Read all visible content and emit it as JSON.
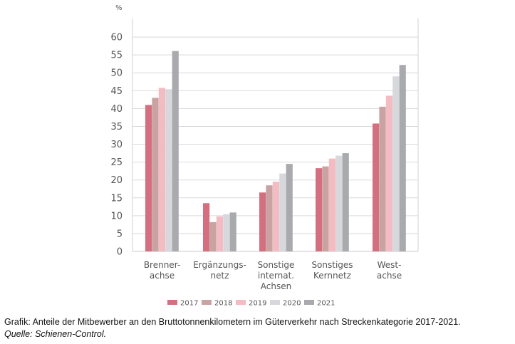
{
  "chart_data": {
    "type": "bar",
    "unit": "%",
    "categories": [
      [
        "Brenner-",
        "achse"
      ],
      [
        "Ergänzungs-",
        "netz"
      ],
      [
        "Sonstige",
        "internat.",
        "Achsen"
      ],
      [
        "Sonstiges",
        "Kernnetz"
      ],
      [
        "West-",
        "achse"
      ]
    ],
    "series": [
      {
        "name": "2017",
        "color": "#d46f7f",
        "values": [
          41,
          13.5,
          16.5,
          23.3,
          35.8
        ]
      },
      {
        "name": "2018",
        "color": "#c9a3a2",
        "values": [
          43,
          8.2,
          18.5,
          23.8,
          40.5
        ]
      },
      {
        "name": "2019",
        "color": "#f2bcc2",
        "values": [
          45.8,
          9.8,
          19.5,
          26,
          43.6
        ]
      },
      {
        "name": "2020",
        "color": "#d6d8db",
        "values": [
          45.4,
          10.4,
          21.8,
          26.8,
          49
        ]
      },
      {
        "name": "2021",
        "color": "#a8aaad",
        "values": [
          56.1,
          10.9,
          24.5,
          27.5,
          52.2
        ]
      }
    ],
    "yticks": [
      "0",
      "5",
      "10",
      "15",
      "20",
      "25",
      "30",
      "35",
      "40",
      "45",
      "50",
      "55",
      "60"
    ],
    "ylim": [
      0,
      65
    ],
    "grid": true,
    "legend_position": "bottom"
  },
  "caption": {
    "text": "Grafik: Anteile der Mitbewerber an den Bruttotonnenkilometern im Güterverkehr nach Streckenkategorie 2017-2021.",
    "source": "Quelle: Schienen-Control."
  }
}
